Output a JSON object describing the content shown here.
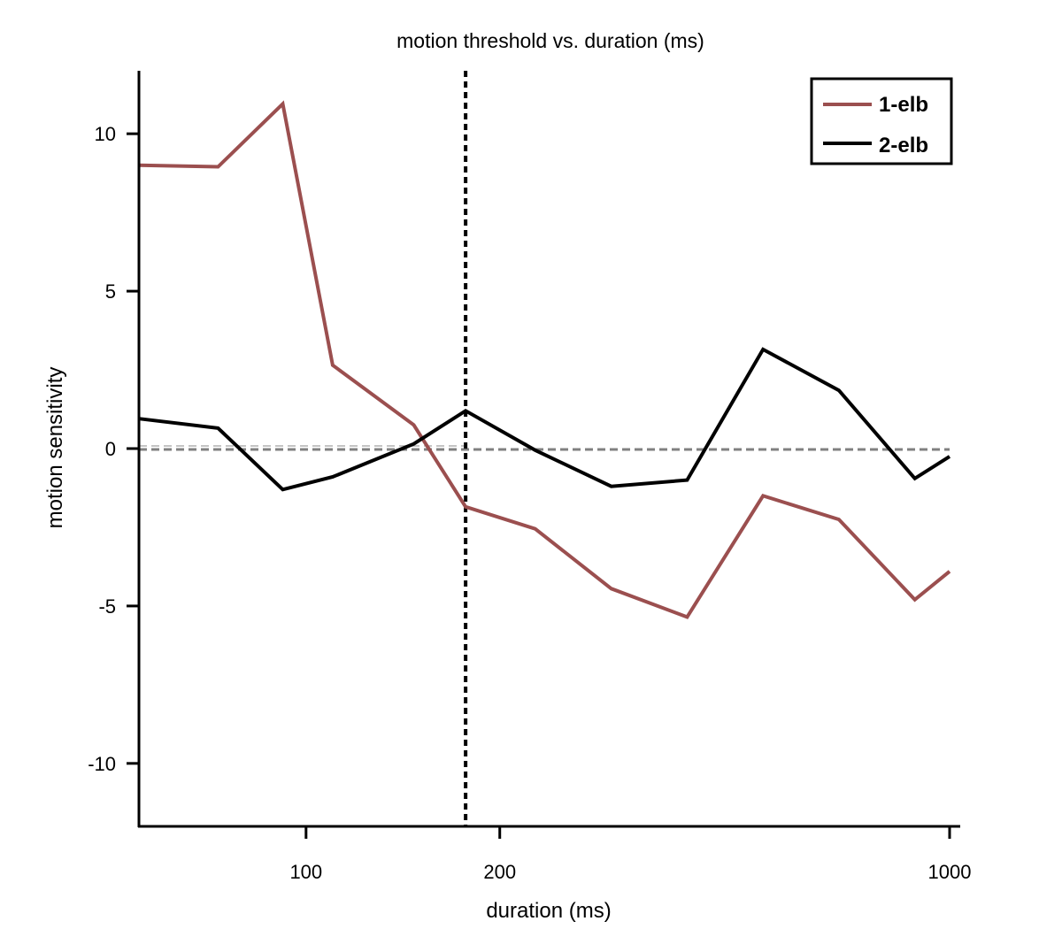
{
  "chart_data": {
    "type": "line",
    "title": "motion threshold vs. duration (ms)",
    "xlabel": "duration (ms)",
    "ylabel": "motion sensitivity",
    "x_scale": "log",
    "xlim": [
      55,
      1000
    ],
    "ylim": [
      -12,
      12
    ],
    "x_ticks": [
      100,
      200,
      1000
    ],
    "x_tick_labels": [
      "100",
      "200",
      "1000"
    ],
    "y_ticks": [
      10,
      5,
      0,
      -5,
      -10
    ],
    "y_tick_labels": [
      "10",
      "5",
      "0",
      "-5",
      "-10"
    ],
    "x": [
      55,
      73,
      92,
      110,
      147,
      177,
      227,
      298,
      391,
      513,
      673,
      883,
      1000
    ],
    "series": [
      {
        "name": "1-elb",
        "color": "#9b4f4f",
        "values": [
          9.0,
          8.95,
          10.95,
          2.65,
          0.75,
          -1.85,
          -2.55,
          -4.45,
          -5.35,
          -1.5,
          -2.25,
          -4.8,
          -3.9
        ]
      },
      {
        "name": "2-elb",
        "color": "#000000",
        "values": [
          0.95,
          0.65,
          -1.3,
          -0.9,
          0.15,
          1.2,
          -0.05,
          -1.2,
          -1.0,
          3.15,
          1.85,
          -0.95,
          -0.25
        ]
      }
    ],
    "reference_lines": [
      {
        "orientation": "horizontal",
        "value": 0,
        "style": "dashed",
        "color": "#808080"
      },
      {
        "orientation": "vertical",
        "value": 177,
        "style": "dotted",
        "color": "#000000"
      }
    ],
    "legend": "top-right",
    "grid": false
  }
}
